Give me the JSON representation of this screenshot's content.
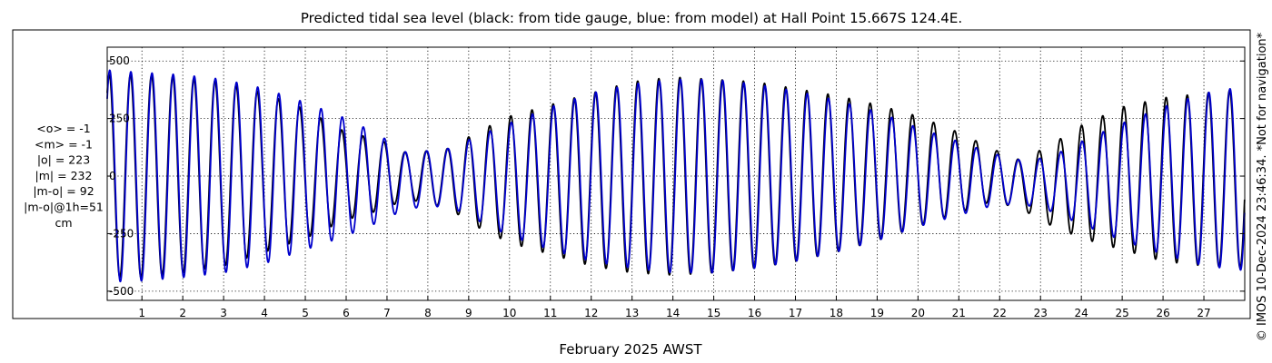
{
  "chart_data": {
    "type": "line",
    "title": "Predicted tidal sea level (black: from tide gauge, blue: from model) at Hall Point 15.667S 124.4E.",
    "xlabel": "February 2025 AWST",
    "ylabel": "",
    "x_ticks": [
      "1",
      "2",
      "3",
      "4",
      "5",
      "6",
      "7",
      "8",
      "9",
      "10",
      "11",
      "12",
      "13",
      "14",
      "15",
      "16",
      "17",
      "18",
      "19",
      "20",
      "21",
      "22",
      "23",
      "24",
      "25",
      "26",
      "27"
    ],
    "xlim": [
      0.15,
      28.0
    ],
    "y_ticks": [
      500,
      250,
      0,
      -250,
      -500
    ],
    "y_tick_labels": [
      "500",
      "250",
      "0",
      "-250",
      "-500"
    ],
    "ylim": [
      -540,
      560
    ],
    "grid": true,
    "legend": "none",
    "stats": [
      "<o> = -1",
      "<m> = -1",
      "|o| = 223",
      "|m| = 232",
      "|m-o| = 92",
      "|m-o|@1h=51",
      "cm"
    ],
    "watermark": "© IMOS 10-Dec-2024 23:46:34. *Not for navigation*",
    "series": [
      {
        "name": "from tide gauge",
        "color": "#000000",
        "envelope": {
          "day": [
            0.2,
            1.0,
            2.0,
            3.0,
            4.0,
            5.0,
            6.0,
            6.8,
            7.5,
            8.5,
            9.3,
            10.0,
            11.0,
            12.0,
            13.0,
            14.0,
            15.0,
            16.0,
            17.0,
            18.0,
            19.0,
            20.0,
            21.0,
            21.8,
            22.5,
            23.2,
            24.0,
            25.0,
            26.0,
            27.0,
            28.0
          ],
          "high": [
            440,
            440,
            430,
            410,
            360,
            290,
            190,
            160,
            100,
            120,
            200,
            260,
            310,
            360,
            410,
            430,
            420,
            410,
            380,
            350,
            310,
            260,
            190,
            120,
            70,
            130,
            220,
            300,
            340,
            360,
            380
          ],
          "low": [
            -440,
            -440,
            -420,
            -390,
            -330,
            -270,
            -190,
            -150,
            -100,
            -140,
            -230,
            -290,
            -340,
            -390,
            -420,
            -430,
            -420,
            -400,
            -370,
            -330,
            -280,
            -220,
            -160,
            -110,
            -140,
            -210,
            -270,
            -320,
            -370,
            -390,
            -400
          ]
        }
      },
      {
        "name": "from model",
        "color": "#0000cc",
        "envelope": {
          "day": [
            0.2,
            1.0,
            2.0,
            3.0,
            4.0,
            5.0,
            6.0,
            6.8,
            7.5,
            8.5,
            9.3,
            10.0,
            11.0,
            12.0,
            13.0,
            14.0,
            15.0,
            16.0,
            17.0,
            18.0,
            19.0,
            20.0,
            21.0,
            21.8,
            22.5,
            23.2,
            24.0,
            25.0,
            26.0,
            27.0,
            28.0
          ],
          "high": [
            460,
            450,
            440,
            420,
            380,
            320,
            250,
            180,
            100,
            120,
            180,
            230,
            300,
            360,
            400,
            420,
            420,
            400,
            370,
            330,
            280,
            210,
            150,
            100,
            70,
            80,
            150,
            230,
            300,
            360,
            390
          ],
          "low": [
            -460,
            -455,
            -440,
            -420,
            -380,
            -320,
            -260,
            -200,
            -140,
            -130,
            -200,
            -260,
            -320,
            -370,
            -400,
            -420,
            -420,
            -400,
            -370,
            -330,
            -280,
            -220,
            -170,
            -130,
            -120,
            -150,
            -210,
            -280,
            -340,
            -390,
            -410
          ]
        }
      }
    ]
  }
}
